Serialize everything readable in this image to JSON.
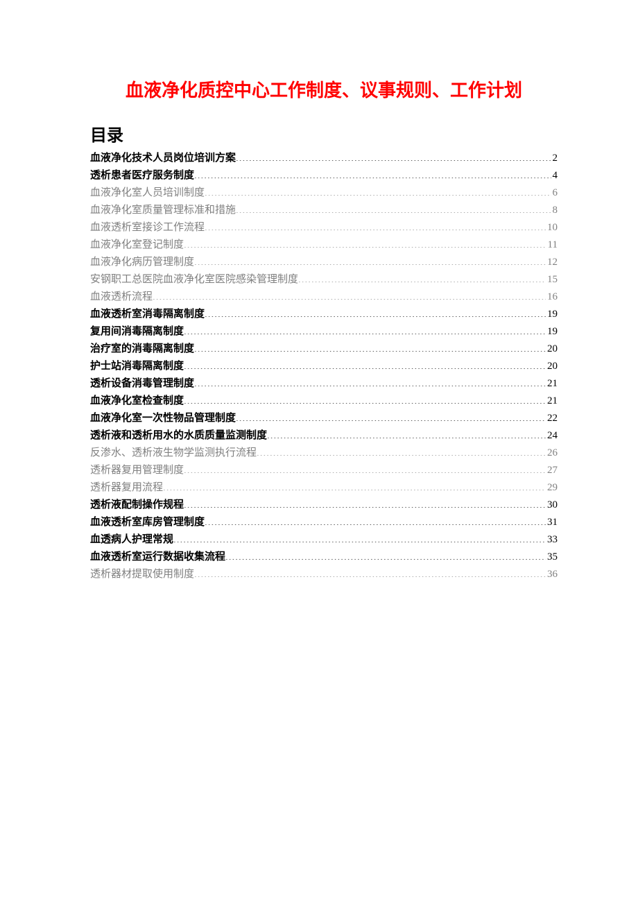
{
  "title": "血液净化质控中心工作制度、议事规则、工作计划",
  "title_color": "#ff0000",
  "title_fontsize": 26,
  "toc_heading": "目录",
  "toc_heading_fontsize": 24,
  "body_fontsize": 15,
  "line_height": 25,
  "background_color": "#ffffff",
  "text_color_bold": "#000000",
  "text_color_dim": "#808080",
  "entries": [
    {
      "label": "血液净化技术人员岗位培训方案",
      "page": "2",
      "style": "bold",
      "trailing_space": true
    },
    {
      "label": "透析患者医疗服务制度",
      "page": "4",
      "style": "bold",
      "trailing_space": true
    },
    {
      "label": "血液净化室人员培训制度",
      "page": "6",
      "style": "dim",
      "trailing_space": false
    },
    {
      "label": "血液净化室质量管理标准和措施",
      "page": "8",
      "style": "dim",
      "trailing_space": false
    },
    {
      "label": "血液透析室接诊工作流程",
      "page": "10",
      "style": "dim",
      "trailing_space": false
    },
    {
      "label": "血液净化室登记制度",
      "page": "11",
      "style": "dim",
      "trailing_space": false
    },
    {
      "label": "血液净化病历管理制度",
      "page": "12",
      "style": "dim",
      "trailing_space": false
    },
    {
      "label": "安钢职工总医院血液净化室医院感染管理制度",
      "page": "15",
      "style": "dim",
      "trailing_space": false
    },
    {
      "label": "血液透析流程",
      "page": "16",
      "style": "dim",
      "trailing_space": false
    },
    {
      "label": "血液透析室消毒隔离制度",
      "page": "19",
      "style": "bold",
      "trailing_space": true
    },
    {
      "label": "复用间消毒隔离制度",
      "page": "19",
      "style": "bold",
      "trailing_space": true
    },
    {
      "label": "治疗室的消毒隔离制度",
      "page": "20",
      "style": "bold",
      "trailing_space": true
    },
    {
      "label": "护士站消毒隔离制度",
      "page": "20",
      "style": "bold",
      "trailing_space": true
    },
    {
      "label": "透析设备消毒管理制度",
      "page": "21",
      "style": "bold",
      "trailing_space": true
    },
    {
      "label": "血液净化室检查制度",
      "page": "21",
      "style": "bold",
      "trailing_space": true
    },
    {
      "label": "血液净化室一次性物品管理制度",
      "page": "22",
      "style": "bold",
      "trailing_space": true
    },
    {
      "label": "透析液和透析用水的水质质量监测制度",
      "page": "24",
      "style": "bold",
      "trailing_space": true
    },
    {
      "label": "反渗水、透析液生物学监测执行流程",
      "page": "26",
      "style": "dim",
      "trailing_space": false
    },
    {
      "label": "透析器复用管理制度",
      "page": "27",
      "style": "dim",
      "trailing_space": false
    },
    {
      "label": "透析器复用流程",
      "page": "29",
      "style": "dim",
      "trailing_space": false
    },
    {
      "label": "透析液配制操作规程",
      "page": "30",
      "style": "bold",
      "trailing_space": true
    },
    {
      "label": "血液透析室库房管理制度",
      "page": "31",
      "style": "bold",
      "trailing_space": true
    },
    {
      "label": "血透病人护理常规",
      "page": "33",
      "style": "bold",
      "trailing_space": true
    },
    {
      "label": "血液透析室运行数据收集流程",
      "page": "35",
      "style": "bold",
      "trailing_space": false
    },
    {
      "label": "透析器材提取使用制度",
      "page": "36",
      "style": "dim",
      "trailing_space": false
    }
  ]
}
